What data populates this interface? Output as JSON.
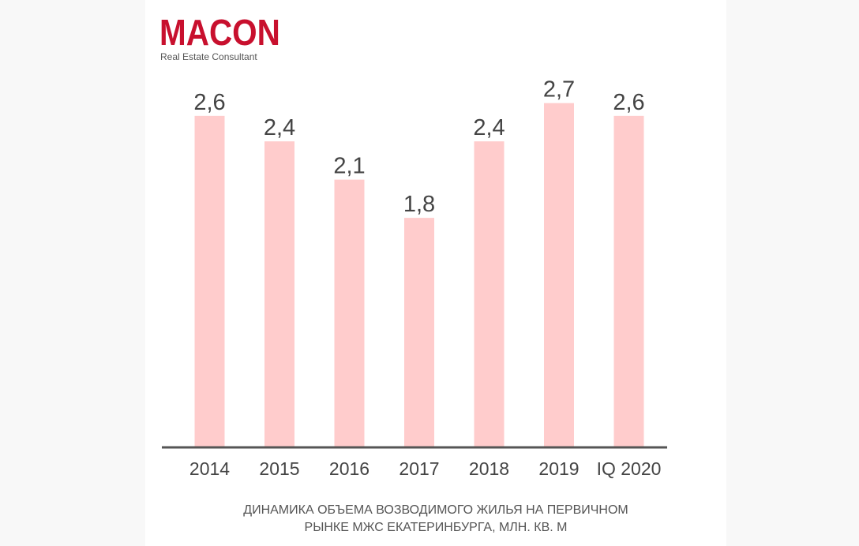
{
  "logo": {
    "name": "MACON",
    "tagline": "Real Estate Consultant"
  },
  "colors": {
    "bar": "#ffcccc",
    "axis": "#555555",
    "label": "#444444",
    "brand": "#c8102e"
  },
  "chart_data": {
    "type": "bar",
    "categories": [
      "2014",
      "2015",
      "2016",
      "2017",
      "2018",
      "2019",
      "IQ 2020"
    ],
    "values": [
      2.6,
      2.4,
      2.1,
      1.8,
      2.4,
      2.7,
      2.6
    ],
    "value_labels": [
      "2,6",
      "2,4",
      "2,1",
      "1,8",
      "2,4",
      "2,7",
      "2,6"
    ],
    "title_lines": [
      "ДИНАМИКА ОБЪЕМА ВОЗВОДИМОГО ЖИЛЬЯ НА ПЕРВИЧНОМ",
      "РЫНКЕ МЖС ЕКАТЕРИНБУРГА, МЛН. КВ. М"
    ],
    "xlabel": "",
    "ylabel": "",
    "ylim": [
      0,
      3.2
    ],
    "grid": false,
    "legend": "none"
  }
}
